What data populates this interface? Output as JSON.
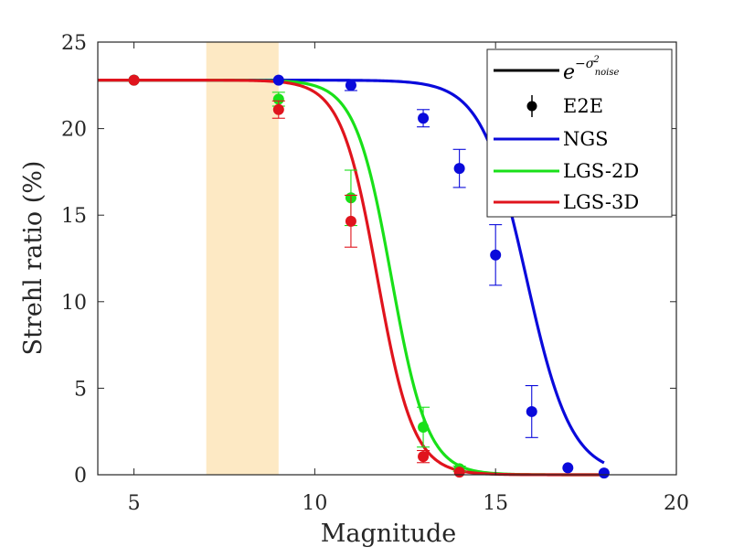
{
  "chart_data": {
    "type": "line",
    "title": "",
    "xlabel": "Magnitude",
    "ylabel": "Strehl ratio (%)",
    "xlim": [
      4,
      20
    ],
    "ylim": [
      0,
      25
    ],
    "xticks": [
      5,
      10,
      15,
      20
    ],
    "yticks": [
      0,
      5,
      10,
      15,
      20,
      25
    ],
    "grid": false,
    "legend_position": "top-right",
    "shaded_band": {
      "x_start": 7,
      "x_end": 9,
      "color": "#fde9c4"
    },
    "legend": {
      "model_prefix": "e",
      "model_exponent": "−σ",
      "model_superscript": "2",
      "model_subscript": "noise",
      "model_color": "#000000",
      "e2e_label": "E2E",
      "e2e_color": "#000000"
    },
    "series": [
      {
        "name": "NGS",
        "color": "#0a0adb",
        "curve": {
          "peak": 22.8,
          "mid": 15.85,
          "scale": 0.62
        },
        "e2e_points": [
          {
            "x": 5,
            "y": 22.8,
            "err": 0
          },
          {
            "x": 9,
            "y": 22.8,
            "err": 0
          },
          {
            "x": 11,
            "y": 22.5,
            "err": 0.3
          },
          {
            "x": 13,
            "y": 20.6,
            "err": 0.5
          },
          {
            "x": 14,
            "y": 17.7,
            "err": 1.1
          },
          {
            "x": 15,
            "y": 12.7,
            "err": 1.75
          },
          {
            "x": 16,
            "y": 3.65,
            "err": 1.5
          },
          {
            "x": 17,
            "y": 0.4,
            "err": 0
          },
          {
            "x": 18,
            "y": 0.1,
            "err": 0
          }
        ]
      },
      {
        "name": "LGS-2D",
        "color": "#19e019",
        "curve": {
          "peak": 22.8,
          "mid": 12.12,
          "scale": 0.5
        },
        "e2e_points": [
          {
            "x": 5,
            "y": 22.8,
            "err": 0
          },
          {
            "x": 9,
            "y": 21.7,
            "err": 0.4
          },
          {
            "x": 11,
            "y": 16.0,
            "err": 1.6
          },
          {
            "x": 13,
            "y": 2.75,
            "err": 1.15
          },
          {
            "x": 14,
            "y": 0.35,
            "err": 0.15
          }
        ]
      },
      {
        "name": "LGS-3D",
        "color": "#e0141d",
        "curve": {
          "peak": 22.8,
          "mid": 11.73,
          "scale": 0.5
        },
        "e2e_points": [
          {
            "x": 5,
            "y": 22.8,
            "err": 0
          },
          {
            "x": 9,
            "y": 21.1,
            "err": 0.5
          },
          {
            "x": 11,
            "y": 14.65,
            "err": 1.5
          },
          {
            "x": 13,
            "y": 1.05,
            "err": 0.35
          },
          {
            "x": 14,
            "y": 0.15,
            "err": 0
          }
        ]
      }
    ]
  }
}
